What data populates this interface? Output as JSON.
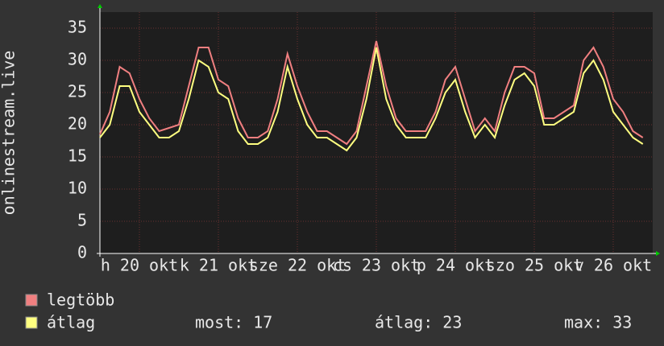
{
  "chart_data": {
    "type": "line",
    "y_label": "onlinestream.live",
    "x": [
      0,
      3,
      6,
      9,
      12,
      15,
      18,
      21,
      24,
      27,
      30,
      33,
      36,
      39,
      42,
      45,
      48,
      51,
      54,
      57,
      60,
      63,
      66,
      69,
      72,
      75,
      78,
      81,
      84,
      87,
      90,
      93,
      96,
      99,
      102,
      105,
      108,
      111,
      114,
      117,
      120,
      123,
      126,
      129,
      132,
      135,
      138,
      141,
      144,
      147,
      150,
      153,
      156,
      159,
      162,
      165
    ],
    "xlim": [
      0,
      168
    ],
    "xticks": [
      {
        "value": 12,
        "label": "h 20 okt"
      },
      {
        "value": 36,
        "label": "k 21 okt"
      },
      {
        "value": 60,
        "label": "sze 22 okt"
      },
      {
        "value": 84,
        "label": "cs 23 okt"
      },
      {
        "value": 108,
        "label": "p 24 okt"
      },
      {
        "value": 132,
        "label": "szo 25 okt"
      },
      {
        "value": 156,
        "label": "v 26 okt"
      }
    ],
    "ylim": [
      0,
      37.5
    ],
    "yticks": [
      0,
      5,
      10,
      15,
      20,
      25,
      30,
      35
    ],
    "grid": true,
    "series": [
      {
        "name": "legtöbb",
        "color": "#f07f80",
        "values": [
          18.5,
          22,
          29,
          28,
          24,
          21,
          19,
          19.5,
          20,
          26,
          32,
          32,
          27,
          26,
          21,
          18,
          18,
          19,
          24,
          31,
          26,
          22,
          19,
          19,
          18,
          17,
          19,
          26,
          33,
          26,
          21,
          19,
          19,
          19,
          22,
          27,
          29,
          24,
          19,
          21,
          19,
          25,
          29,
          29,
          28,
          21,
          21,
          22,
          23,
          30,
          32,
          29,
          24,
          22,
          19,
          18
        ]
      },
      {
        "name": "átlag",
        "color": "#ffff80",
        "values": [
          18,
          20,
          26,
          26,
          22,
          20,
          18,
          18,
          19,
          24,
          30,
          29,
          25,
          24,
          19,
          17,
          17,
          18,
          22,
          29,
          24,
          20,
          18,
          18,
          17,
          16,
          18,
          24,
          32,
          24,
          20,
          18,
          18,
          18,
          21,
          25,
          27,
          22,
          18,
          20,
          18,
          23,
          27,
          28,
          26,
          20,
          20,
          21,
          22,
          28,
          30,
          27,
          22,
          20,
          18,
          17
        ]
      }
    ],
    "stats": [
      "most: 17",
      "átlag: 23",
      "max: 33"
    ]
  }
}
